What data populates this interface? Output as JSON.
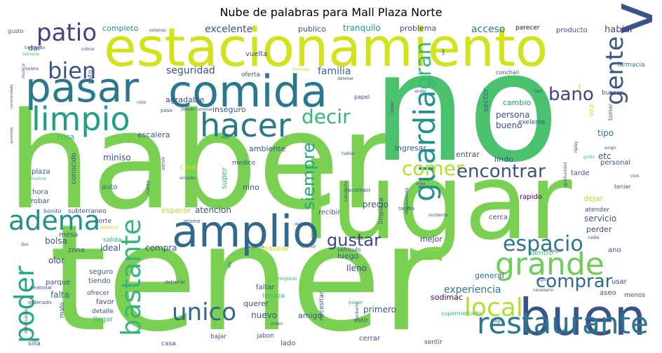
{
  "chart_data": {
    "type": "wordcloud",
    "title": "Nube de palabras para Mall Plaza Norte",
    "palette": "viridis",
    "words": [
      {
        "text": "tener",
        "weight": 100
      },
      {
        "text": "haber",
        "weight": 96
      },
      {
        "text": "no",
        "weight": 90
      },
      {
        "text": "lugar",
        "weight": 72
      },
      {
        "text": "estacionamiento",
        "weight": 52
      },
      {
        "text": "variedad",
        "weight": 50
      },
      {
        "text": "buen",
        "weight": 46
      },
      {
        "text": "comida",
        "weight": 42
      },
      {
        "text": "amplio",
        "weight": 40
      },
      {
        "text": "pasar",
        "weight": 34
      },
      {
        "text": "restaurante",
        "weight": 30
      },
      {
        "text": "limpio",
        "weight": 30
      },
      {
        "text": "grande",
        "weight": 29
      },
      {
        "text": "hacer",
        "weight": 28
      },
      {
        "text": "guardia",
        "weight": 28
      },
      {
        "text": "bastante",
        "weight": 27
      },
      {
        "text": "adema",
        "weight": 26
      },
      {
        "text": "poder",
        "weight": 26
      },
      {
        "text": "unico",
        "weight": 25
      },
      {
        "text": "local",
        "weight": 25
      },
      {
        "text": "gente",
        "weight": 24
      },
      {
        "text": "patio",
        "weight": 23
      },
      {
        "text": "bien",
        "weight": 22
      },
      {
        "text": "espacio",
        "weight": 22
      },
      {
        "text": "comer",
        "weight": 21
      },
      {
        "text": "encontrar",
        "weight": 20
      },
      {
        "text": "decir",
        "weight": 20
      },
      {
        "text": "gran",
        "weight": 20
      },
      {
        "text": "comprar",
        "weight": 19
      },
      {
        "text": "gustar",
        "weight": 19
      },
      {
        "text": "bano",
        "weight": 18
      },
      {
        "text": "siempre",
        "weight": 18
      },
      {
        "text": "excelente",
        "weight": 12
      },
      {
        "text": "experiencia",
        "weight": 12
      },
      {
        "text": "familia",
        "weight": 11
      },
      {
        "text": "seguridad",
        "weight": 11
      },
      {
        "text": "acceso",
        "weight": 11
      },
      {
        "text": "tranquilo",
        "weight": 11
      },
      {
        "text": "habiar",
        "weight": 11
      },
      {
        "text": "completo",
        "weight": 11
      },
      {
        "text": "agradable",
        "weight": 10
      },
      {
        "text": "ambiente",
        "weight": 10
      },
      {
        "text": "escalera",
        "weight": 10
      },
      {
        "text": "inseguro",
        "weight": 10
      },
      {
        "text": "persona",
        "weight": 10
      },
      {
        "text": "cambio",
        "weight": 10
      },
      {
        "text": "bueno",
        "weight": 10
      },
      {
        "text": "precio",
        "weight": 10
      },
      {
        "text": "sector",
        "weight": 10
      },
      {
        "text": "mejor",
        "weight": 10
      },
      {
        "text": "luego",
        "weight": 10
      },
      {
        "text": "compra",
        "weight": 10
      },
      {
        "text": "pasear",
        "weight": 10
      },
      {
        "text": "nuevo",
        "weight": 10
      },
      {
        "text": "querer",
        "weight": 10
      },
      {
        "text": "primero",
        "weight": 10
      },
      {
        "text": "sodimac",
        "weight": 9
      },
      {
        "text": "general",
        "weight": 9
      },
      {
        "text": "lleno",
        "weight": 9
      },
      {
        "text": "olor",
        "weight": 10
      },
      {
        "text": "falta",
        "weight": 10
      },
      {
        "text": "bolsa",
        "weight": 10
      },
      {
        "text": "ideal",
        "weight": 10
      },
      {
        "text": "atencion",
        "weight": 10
      },
      {
        "text": "esperar",
        "weight": 10
      },
      {
        "text": "servicio",
        "weight": 10
      },
      {
        "text": "perder",
        "weight": 10
      },
      {
        "text": "dejar",
        "weight": 10
      },
      {
        "text": "rapido",
        "weight": 9
      },
      {
        "text": "cerca",
        "weight": 9
      },
      {
        "text": "tipo",
        "weight": 10
      },
      {
        "text": "etc",
        "weight": 10
      },
      {
        "text": "personal",
        "weight": 9
      },
      {
        "text": "tarde",
        "weight": 9
      },
      {
        "text": "entrar",
        "weight": 9
      },
      {
        "text": "lindo",
        "weight": 9
      },
      {
        "text": "ingresar",
        "weight": 9
      },
      {
        "text": "miniso",
        "weight": 10
      },
      {
        "text": "cosa",
        "weight": 10
      },
      {
        "text": "plaza",
        "weight": 9
      },
      {
        "text": "hora",
        "weight": 9
      },
      {
        "text": "robar",
        "weight": 9
      },
      {
        "text": "auto",
        "weight": 9
      },
      {
        "text": "nino",
        "weight": 9
      },
      {
        "text": "super",
        "weight": 9
      },
      {
        "text": "cine",
        "weight": 9
      },
      {
        "text": "medico",
        "weight": 8
      },
      {
        "text": "conocido",
        "weight": 8
      },
      {
        "text": "dar",
        "weight": 9
      },
      {
        "text": "rato",
        "weight": 8
      },
      {
        "text": "vuelta",
        "weight": 8
      },
      {
        "text": "oferta",
        "weight": 8
      },
      {
        "text": "publico",
        "weight": 9
      },
      {
        "text": "problema",
        "weight": 9
      },
      {
        "text": "producto",
        "weight": 8
      },
      {
        "text": "parecer",
        "weight": 8
      },
      {
        "text": "farmacia",
        "weight": 7
      },
      {
        "text": "conchali",
        "weight": 7
      },
      {
        "text": "buscar",
        "weight": 8
      },
      {
        "text": "tomar",
        "weight": 7
      },
      {
        "text": "vez",
        "weight": 8
      },
      {
        "text": "limpieza",
        "weight": 8
      },
      {
        "text": "recibir",
        "weight": 8
      },
      {
        "text": "recomeir",
        "weight": 7
      },
      {
        "text": "exelente",
        "weight": 8
      },
      {
        "text": "teniar",
        "weight": 7
      },
      {
        "text": "atender",
        "weight": 7
      },
      {
        "text": "ano",
        "weight": 8
      },
      {
        "text": "mesa",
        "weight": 8
      },
      {
        "text": "zona",
        "weight": 8
      },
      {
        "text": "seguro",
        "weight": 8
      },
      {
        "text": "tiendo",
        "weight": 8
      },
      {
        "text": "ofrecer",
        "weight": 8
      },
      {
        "text": "favor",
        "weight": 8
      },
      {
        "text": "parque",
        "weight": 8
      },
      {
        "text": "detalle",
        "weight": 8
      },
      {
        "text": "llegar",
        "weight": 8
      },
      {
        "text": "faltar",
        "weight": 8
      },
      {
        "text": "terraza",
        "weight": 8
      },
      {
        "text": "necesitar",
        "weight": 8
      },
      {
        "text": "amigo",
        "weight": 8
      },
      {
        "text": "estir",
        "weight": 7
      },
      {
        "text": "supermercado",
        "weight": 7
      },
      {
        "text": "dentro",
        "weight": 8
      },
      {
        "text": "usar",
        "weight": 7
      },
      {
        "text": "aseo",
        "weight": 7
      },
      {
        "text": "menos",
        "weight": 7
      },
      {
        "text": "cerrar",
        "weight": 7
      },
      {
        "text": "sentir",
        "weight": 7
      },
      {
        "text": "casa",
        "weight": 7
      },
      {
        "text": "bajar",
        "weight": 7
      },
      {
        "text": "jabon",
        "weight": 7
      },
      {
        "text": "lado",
        "weight": 8
      },
      {
        "text": "silla",
        "weight": 7
      },
      {
        "text": "malo",
        "weight": 7
      },
      {
        "text": "bonito",
        "weight": 7
      },
      {
        "text": "subterraneo",
        "weight": 7
      },
      {
        "text": "norte",
        "weight": 7
      },
      {
        "text": "salida",
        "weight": 7
      },
      {
        "text": "algun",
        "weight": 6
      },
      {
        "text": "mismo",
        "weight": 6
      },
      {
        "text": "debajo",
        "weight": 6
      },
      {
        "text": "vehiculo",
        "weight": 6
      },
      {
        "text": "pequeno",
        "weight": 6
      },
      {
        "text": "cierto",
        "weight": 6
      },
      {
        "text": "chica",
        "weight": 6
      },
      {
        "text": "seguir",
        "weight": 6
      },
      {
        "text": "nadie",
        "weight": 6
      },
      {
        "text": "deberiar",
        "weight": 6
      },
      {
        "text": "negocio",
        "weight": 6
      },
      {
        "text": "orden",
        "weight": 6
      },
      {
        "text": "canberra",
        "weight": 6
      },
      {
        "text": "pagar",
        "weight": 6
      },
      {
        "text": "trago",
        "weight": 6
      },
      {
        "text": "necesario",
        "weight": 6
      },
      {
        "text": "peatonal",
        "weight": 6
      },
      {
        "text": "ordenado",
        "weight": 6
      },
      {
        "text": "delincuente",
        "weight": 6
      },
      {
        "text": "preferir",
        "weight": 6
      },
      {
        "text": "dos",
        "weight": 6
      },
      {
        "text": "dia",
        "weight": 6
      },
      {
        "text": "rueda",
        "weight": 6
      },
      {
        "text": "servir",
        "weight": 6
      },
      {
        "text": "ernesto",
        "weight": 6
      },
      {
        "text": "rico",
        "weight": 6
      },
      {
        "text": "caminar",
        "weight": 6
      },
      {
        "text": "llevar",
        "weight": 6
      },
      {
        "text": "paso",
        "weight": 6
      },
      {
        "text": "robo",
        "weight": 6
      },
      {
        "text": "papel",
        "weight": 7
      },
      {
        "text": "detener",
        "weight": 6
      },
      {
        "text": "deber",
        "weight": 6
      },
      {
        "text": "andar",
        "weight": 6
      },
      {
        "text": "ried",
        "weight": 6
      },
      {
        "text": "mos",
        "weight": 5
      },
      {
        "text": "comuna",
        "weight": 6
      },
      {
        "text": "boleta",
        "weight": 6
      },
      {
        "text": "musica",
        "weight": 6
      },
      {
        "text": "semana",
        "weight": 6
      },
      {
        "text": "gusto",
        "weight": 7
      },
      {
        "text": "extenso",
        "weight": 6
      },
      {
        "text": "tremendo",
        "weight": 6
      },
      {
        "text": "cobrar",
        "weight": 6
      },
      {
        "text": "ver",
        "weight": 6
      },
      {
        "text": "recomendado",
        "weight": 5
      },
      {
        "text": "accesible",
        "weight": 5
      },
      {
        "text": "mostrar",
        "weight": 6
      },
      {
        "text": "hablar",
        "weight": 6
      },
      {
        "text": "satisfecho",
        "weight": 6
      },
      {
        "text": "simplemente",
        "weight": 6
      },
      {
        "text": "area",
        "weight": 6
      },
      {
        "text": "tarjeta",
        "weight": 6
      },
      {
        "text": "incidente",
        "weight": 6
      },
      {
        "text": "oportunidad",
        "weight": 6
      },
      {
        "text": "ripley",
        "weight": 6
      },
      {
        "text": "vivo",
        "weight": 6
      },
      {
        "text": "grato",
        "weight": 6
      },
      {
        "text": "exigir",
        "weight": 6
      }
    ]
  }
}
